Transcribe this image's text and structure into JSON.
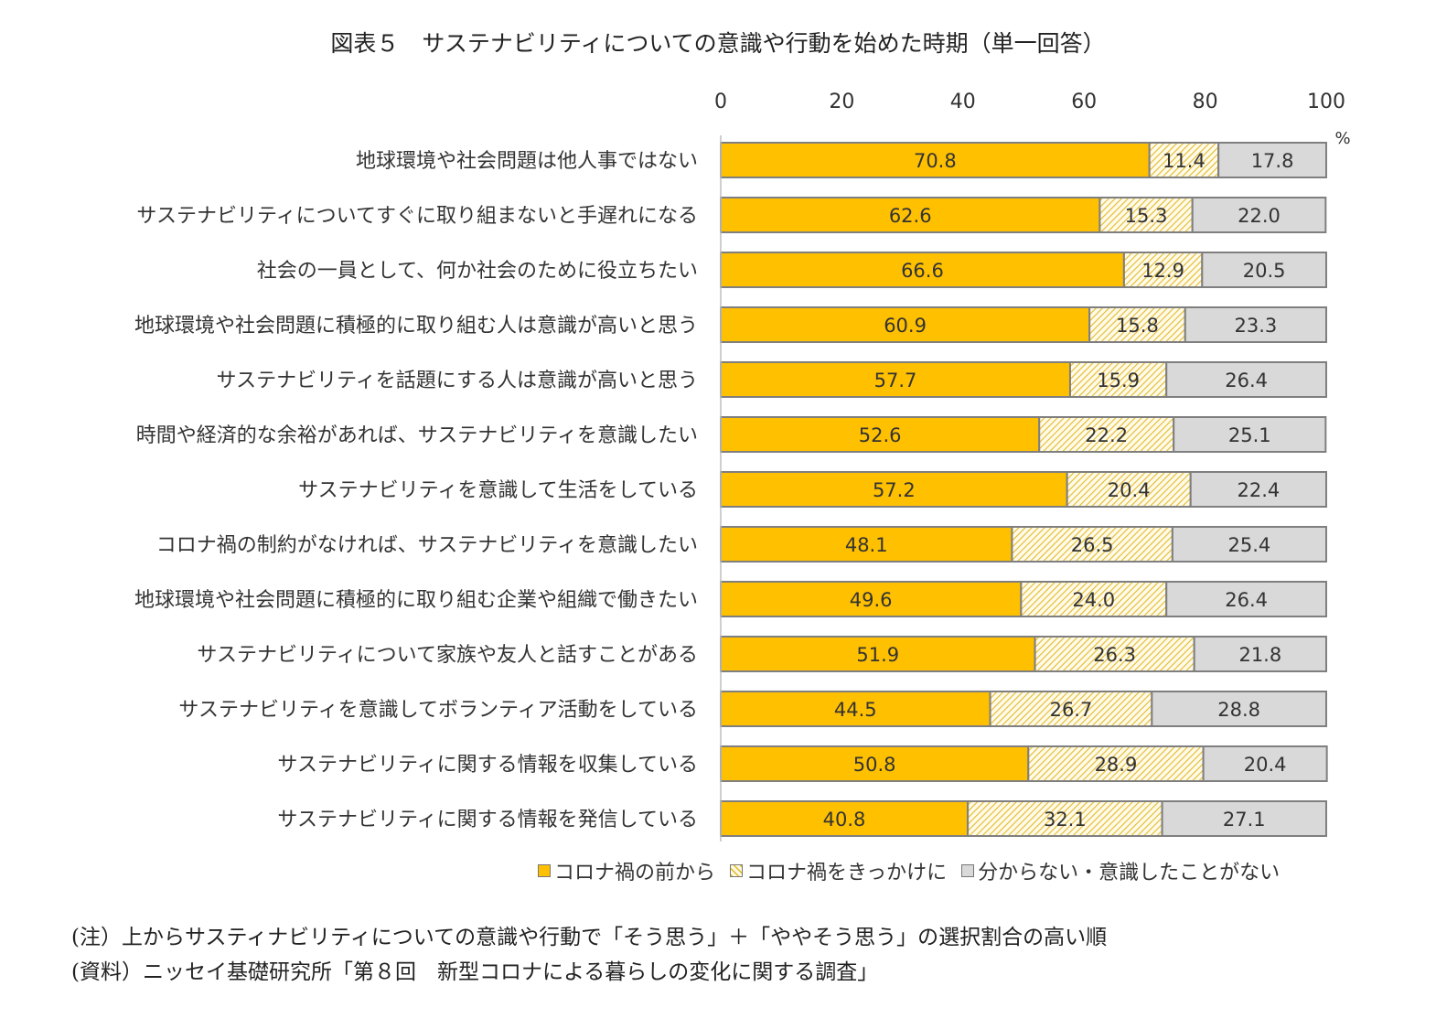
{
  "title": "図表５　サステナビリティについての意識や行動を始めた時期（単一回答）",
  "chart_data": {
    "type": "bar",
    "orientation": "horizontal",
    "stacked": true,
    "xlim": [
      0,
      100
    ],
    "x_ticks": [
      "0",
      "20",
      "40",
      "60",
      "80",
      "100"
    ],
    "x_unit": "%",
    "categories": [
      "地球環境や社会問題は他人事ではない",
      "サステナビリティについてすぐに取り組まないと手遅れになる",
      "社会の一員として、何か社会のために役立ちたい",
      "地球環境や社会問題に積極的に取り組む人は意識が高いと思う",
      "サステナビリティを話題にする人は意識が高いと思う",
      "時間や経済的な余裕があれば、サステナビリティを意識したい",
      "サステナビリティを意識して生活をしている",
      "コロナ禍の制約がなければ、サステナビリティを意識したい",
      "地球環境や社会問題に積極的に取り組む企業や組織で働きたい",
      "サステナビリティについて家族や友人と話すことがある",
      "サステナビリティを意識してボランティア活動をしている",
      "サステナビリティに関する情報を収集している",
      "サステナビリティに関する情報を発信している"
    ],
    "series": [
      {
        "name": "コロナ禍の前から",
        "color": "#FFC000",
        "values": [
          70.8,
          62.6,
          66.6,
          60.9,
          57.7,
          52.6,
          57.2,
          48.1,
          49.6,
          51.9,
          44.5,
          50.8,
          40.8
        ]
      },
      {
        "name": "コロナ禍をきっかけに",
        "color": "#FFF5CC",
        "values": [
          11.4,
          15.3,
          12.9,
          15.8,
          15.9,
          22.2,
          20.4,
          26.5,
          24.0,
          26.3,
          26.7,
          28.9,
          32.1
        ]
      },
      {
        "name": "分からない・意識したことがない",
        "color": "#D9D9D9",
        "values": [
          17.8,
          22.0,
          20.5,
          23.3,
          26.4,
          25.1,
          22.4,
          25.4,
          26.4,
          21.8,
          28.8,
          20.4,
          27.1
        ]
      }
    ],
    "legend_position": "bottom"
  },
  "notes": [
    "(注）上からサスティナビリティについての意識や行動で「そう思う」＋「ややそう思う」の選択割合の高い順",
    "(資料）ニッセイ基礎研究所「第８回　新型コロナによる暮らしの変化に関する調査」"
  ]
}
